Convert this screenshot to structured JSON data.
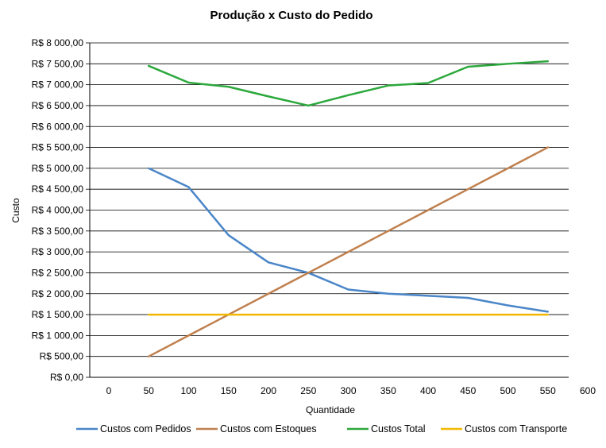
{
  "chart_data": {
    "type": "line",
    "title": "Produção x Custo do Pedido",
    "xlabel": "Quantidade",
    "ylabel": "Custo",
    "categories": [
      "0",
      "50",
      "100",
      "150",
      "200",
      "250",
      "300",
      "350",
      "400",
      "450",
      "500",
      "550",
      "600"
    ],
    "xlim": [
      0,
      600
    ],
    "ylim": [
      0,
      8000
    ],
    "y_ticks": [
      0,
      500,
      1000,
      1500,
      2000,
      2500,
      3000,
      3500,
      4000,
      4500,
      5000,
      5500,
      6000,
      6500,
      7000,
      7500,
      8000
    ],
    "y_tick_labels": [
      "R$ 0,00",
      "R$ 500,00",
      "R$ 1 000,00",
      "R$ 1 500,00",
      "R$ 2 000,00",
      "R$ 2 500,00",
      "R$ 3 000,00",
      "R$ 3 500,00",
      "R$ 4 000,00",
      "R$ 4 500,00",
      "R$ 5 000,00",
      "R$ 5 500,00",
      "R$ 6 000,00",
      "R$ 6 500,00",
      "R$ 7 000,00",
      "R$ 7 500,00",
      "R$ 8 000,00"
    ],
    "grid": true,
    "legend_position": "bottom",
    "series": [
      {
        "name": "Custos com Pedidos",
        "color": "#4a86c8",
        "x": [
          50,
          100,
          150,
          200,
          250,
          300,
          350,
          400,
          450,
          500,
          550
        ],
        "values": [
          5000,
          4550,
          3400,
          2750,
          2500,
          2100,
          2000,
          1950,
          1900,
          1720,
          1570
        ]
      },
      {
        "name": "Custos com Estoques",
        "color": "#c0804e",
        "x": [
          50,
          100,
          150,
          200,
          250,
          300,
          350,
          400,
          450,
          500,
          550
        ],
        "values": [
          500,
          1000,
          1500,
          2000,
          2500,
          3000,
          3500,
          4000,
          4500,
          5000,
          5500
        ]
      },
      {
        "name": "Custos Total",
        "color": "#2ca83c",
        "x": [
          50,
          100,
          150,
          200,
          250,
          300,
          350,
          400,
          450,
          500,
          550
        ],
        "values": [
          7450,
          7050,
          6950,
          6720,
          6500,
          6750,
          6980,
          7040,
          7430,
          7500,
          7560
        ]
      },
      {
        "name": "Custos com Transporte",
        "color": "#f2b800",
        "x": [
          50,
          100,
          150,
          200,
          250,
          300,
          350,
          400,
          450,
          500,
          550
        ],
        "values": [
          1500,
          1500,
          1500,
          1500,
          1500,
          1500,
          1500,
          1500,
          1500,
          1500,
          1500
        ]
      }
    ]
  }
}
